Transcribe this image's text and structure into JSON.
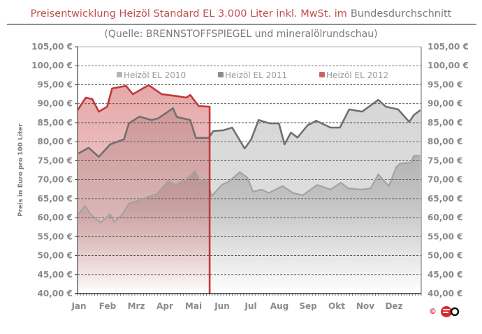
{
  "chart_data": {
    "type": "area",
    "title_part1": "Preisentwicklung Heizöl Standard EL 3.000 Liter inkl. MwSt. im",
    "title_part2": "Bundesdurchschnitt",
    "subtitle": "(Quelle: BRENNSTOFFSPIEGEL  und mineralölrundschau)",
    "ylabel": "Preis in Euro pro 100 Liter",
    "ylim": [
      40,
      105
    ],
    "y_ticks": [
      "40,00 €",
      "45,00 €",
      "50,00 €",
      "55,00 €",
      "60,00 €",
      "65,00 €",
      "70,00 €",
      "75,00 €",
      "80,00 €",
      "85,00 €",
      "90,00 €",
      "95,00 €",
      "100,00 €",
      "105,00 €"
    ],
    "x_ticks": [
      "Jan",
      "Feb",
      "Mrz",
      "Apr",
      "Mai",
      "Jun",
      "Jul",
      "Aug",
      "Sep",
      "Okt",
      "Nov",
      "Dez"
    ],
    "grid": true,
    "legend_position": "top",
    "copyright": "©",
    "series": [
      {
        "name": "Heizöl EL 2011",
        "color": "#707070",
        "fill": "#dcdcdc",
        "points": [
          [
            "02.01",
            76.9
          ],
          [
            "13.01",
            78.4
          ],
          [
            "24.01",
            76.0
          ],
          [
            "05.02",
            79.3
          ],
          [
            "19.02",
            80.6
          ],
          [
            "24.02",
            84.8
          ],
          [
            "06.03",
            86.6
          ],
          [
            "19.03",
            85.7
          ],
          [
            "26.03",
            86.1
          ],
          [
            "11.04",
            88.8
          ],
          [
            "15.04",
            86.5
          ],
          [
            "29.04",
            85.7
          ],
          [
            "05.05",
            81.0
          ],
          [
            "19.05",
            81.0
          ],
          [
            "24.05",
            82.8
          ],
          [
            "04.06",
            83.0
          ],
          [
            "13.06",
            83.7
          ],
          [
            "26.06",
            78.2
          ],
          [
            "03.07",
            80.6
          ],
          [
            "11.07",
            85.7
          ],
          [
            "23.07",
            84.8
          ],
          [
            "02.08",
            84.8
          ],
          [
            "08.08",
            79.3
          ],
          [
            "15.08",
            82.4
          ],
          [
            "22.08",
            81.1
          ],
          [
            "02.09",
            84.3
          ],
          [
            "11.09",
            85.5
          ],
          [
            "26.09",
            83.7
          ],
          [
            "06.10",
            83.7
          ],
          [
            "16.10",
            88.5
          ],
          [
            "30.10",
            87.9
          ],
          [
            "16.11",
            91.0
          ],
          [
            "24.11",
            89.2
          ],
          [
            "07.12",
            88.5
          ],
          [
            "19.12",
            85.2
          ],
          [
            "24.12",
            87.0
          ],
          [
            "31.12",
            88.3
          ]
        ]
      },
      {
        "name": "Heizöl EL 2010",
        "color": "#a3a3a3",
        "fill": "#bdbdbd",
        "points": [
          [
            "02.01",
            60.9
          ],
          [
            "09.01",
            63.1
          ],
          [
            "15.01",
            60.9
          ],
          [
            "26.01",
            58.7
          ],
          [
            "05.02",
            60.9
          ],
          [
            "09.02",
            58.9
          ],
          [
            "17.02",
            60.7
          ],
          [
            "24.02",
            63.7
          ],
          [
            "11.03",
            65.0
          ],
          [
            "25.03",
            66.3
          ],
          [
            "06.04",
            69.6
          ],
          [
            "14.04",
            68.6
          ],
          [
            "25.04",
            70.1
          ],
          [
            "04.05",
            72.3
          ],
          [
            "09.05",
            69.9
          ],
          [
            "18.05",
            69.6
          ],
          [
            "22.05",
            65.6
          ],
          [
            "02.06",
            68.6
          ],
          [
            "10.06",
            69.6
          ],
          [
            "21.06",
            72.0
          ],
          [
            "29.06",
            70.5
          ],
          [
            "05.07",
            66.8
          ],
          [
            "14.07",
            67.4
          ],
          [
            "22.07",
            66.5
          ],
          [
            "06.08",
            68.3
          ],
          [
            "17.08",
            66.5
          ],
          [
            "28.08",
            65.9
          ],
          [
            "12.09",
            68.6
          ],
          [
            "26.09",
            67.4
          ],
          [
            "07.10",
            69.2
          ],
          [
            "15.10",
            67.7
          ],
          [
            "29.10",
            67.4
          ],
          [
            "08.11",
            67.7
          ],
          [
            "16.11",
            71.4
          ],
          [
            "27.11",
            68.3
          ],
          [
            "05.12",
            73.3
          ],
          [
            "09.12",
            74.2
          ],
          [
            "21.12",
            74.5
          ],
          [
            "24.12",
            76.3
          ],
          [
            "31.12",
            76.3
          ]
        ]
      },
      {
        "name": "Heizöl EL 2012",
        "color": "#c0393b",
        "fill": "#d98a8a",
        "points": [
          [
            "01.01",
            88.3
          ],
          [
            "10.01",
            91.6
          ],
          [
            "17.01",
            91.2
          ],
          [
            "24.01",
            87.9
          ],
          [
            "02.02",
            89.2
          ],
          [
            "07.02",
            94.0
          ],
          [
            "21.02",
            94.7
          ],
          [
            "28.02",
            92.5
          ],
          [
            "16.03",
            94.9
          ],
          [
            "30.03",
            92.5
          ],
          [
            "15.04",
            92.0
          ],
          [
            "25.04",
            91.6
          ],
          [
            "29.04",
            92.3
          ],
          [
            "08.05",
            89.4
          ],
          [
            "19.05",
            89.2
          ],
          [
            "20.05",
            89.2
          ]
        ]
      }
    ],
    "legend_order": [
      1,
      0,
      2
    ]
  }
}
